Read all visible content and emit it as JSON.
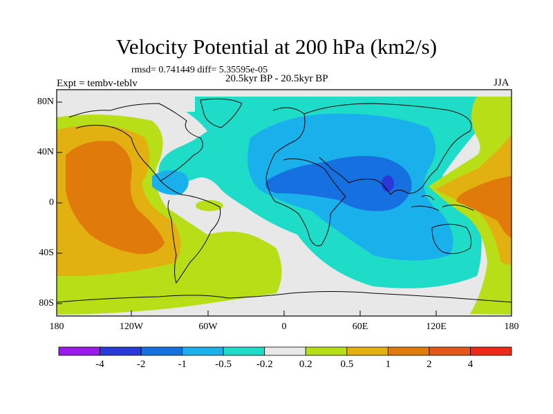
{
  "title": "Velocity Potential at 200 hPa (km2/s)",
  "stats": "rmsd= 0.741449 diff= 5.35595e-05",
  "left_label": "Expt = tembv-teblv",
  "center_label": "20.5kyr BP - 20.5kyr BP",
  "right_label": "JJA",
  "y_ticks": [
    "80N",
    "40N",
    "0",
    "40S",
    "80S"
  ],
  "x_ticks": [
    "180",
    "120W",
    "60W",
    "0",
    "60E",
    "120E",
    "180"
  ],
  "colorbar": {
    "colors": [
      "#9a1aee",
      "#2a3ad8",
      "#1670e0",
      "#19b0ec",
      "#1fdcc8",
      "#e8e8e8",
      "#b8de18",
      "#e2b010",
      "#e07a0a",
      "#e6551a",
      "#ee2a18"
    ],
    "labels": [
      "-4",
      "-2",
      "-1",
      "-0.5",
      "-0.2",
      "0.2",
      "0.5",
      "1",
      "2",
      "4"
    ]
  },
  "chart_data": {
    "type": "heatmap",
    "title": "Velocity Potential at 200 hPa (km2/s)",
    "projection": "cylindrical equidistant",
    "x_range_deg": [
      -180,
      180
    ],
    "y_range_deg": [
      -90,
      90
    ],
    "units": "km2/s",
    "contour_levels": [
      -4,
      -2,
      -1,
      -0.5,
      -0.2,
      0.2,
      0.5,
      1,
      2,
      4
    ],
    "regions": [
      {
        "name": "Eastern Pacific high",
        "approx_lon": [
          -175,
          -100
        ],
        "approx_lat": [
          -40,
          55
        ],
        "value_band": "1 to 2"
      },
      {
        "name": "Asia / Indian Ocean low",
        "approx_lon": [
          -25,
          150
        ],
        "approx_lat": [
          -60,
          75
        ],
        "value_band": "-0.5 to -1"
      },
      {
        "name": "Bay of Bengal minimum",
        "approx_lon": [
          82,
          88
        ],
        "approx_lat": [
          10,
          20
        ],
        "value_band": "-2 to -4"
      },
      {
        "name": "Western Pacific high",
        "approx_lon": [
          120,
          180
        ],
        "approx_lat": [
          -20,
          30
        ],
        "value_band": "1 to 2"
      },
      {
        "name": "Southern Ocean / South Atlantic",
        "approx_lon": [
          -180,
          -20
        ],
        "approx_lat": [
          -85,
          -30
        ],
        "value_band": "0.2 to 0.5"
      },
      {
        "name": "Near-zero (Antarctica, Europe)",
        "value_band": "-0.2 to 0.2"
      }
    ]
  }
}
